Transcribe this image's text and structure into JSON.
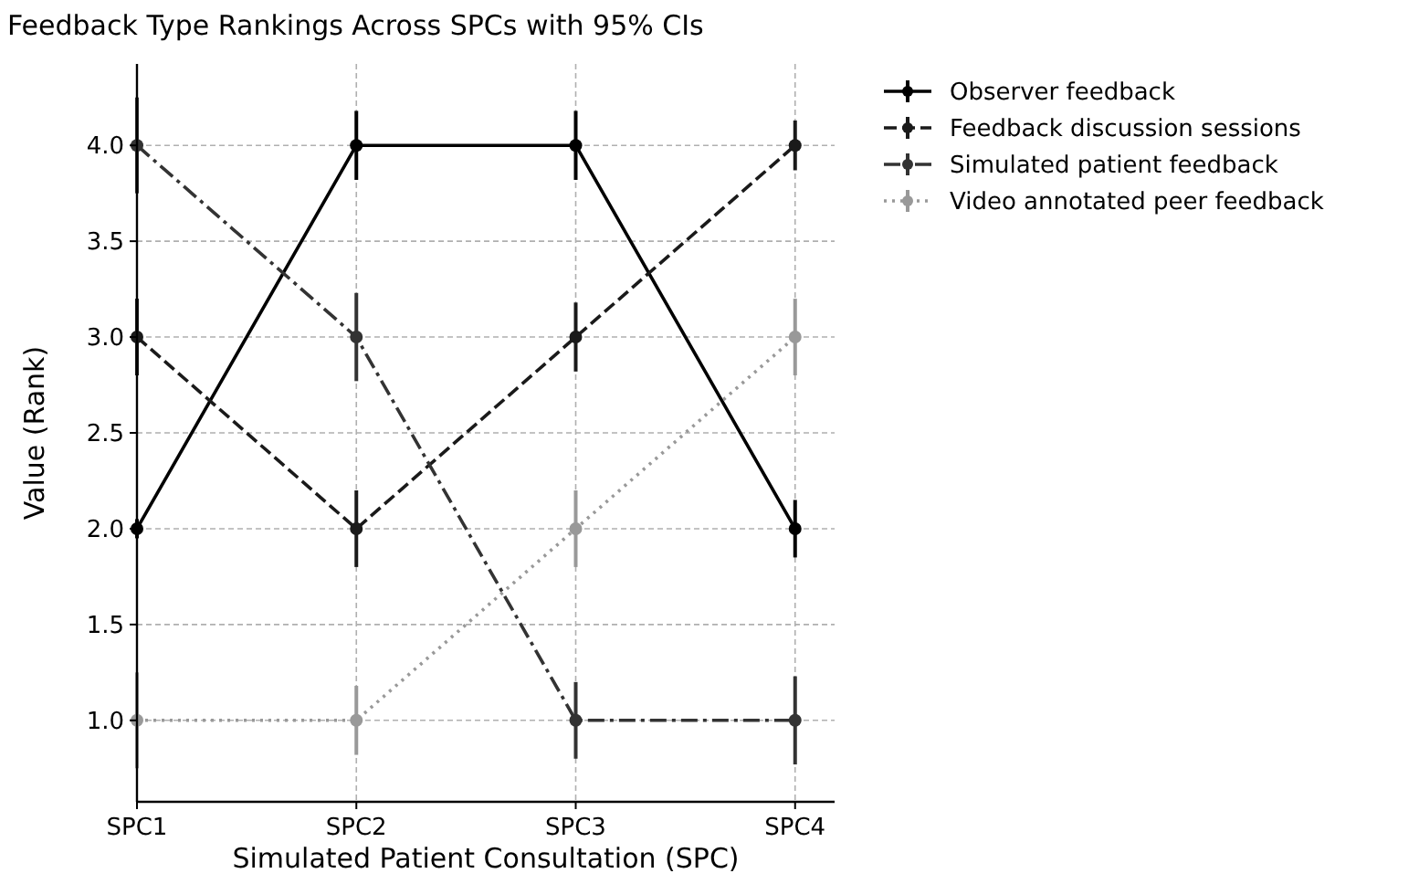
{
  "chart_data": {
    "type": "line",
    "title": "Feedback Type Rankings Across SPCs with 95% CIs",
    "xlabel": "Simulated Patient Consultation (SPC)",
    "ylabel": "Value (Rank)",
    "categories": [
      "SPC1",
      "SPC2",
      "SPC3",
      "SPC4"
    ],
    "series": [
      {
        "name": "Observer feedback",
        "color": "#000000",
        "line_style": "solid",
        "values": [
          2,
          4,
          4,
          2
        ],
        "errors": [
          0.05,
          0.18,
          0.18,
          0.15
        ]
      },
      {
        "name": "Feedback discussion sessions",
        "color": "#1a1a1a",
        "line_style": "dashed",
        "values": [
          3,
          2,
          3,
          4
        ],
        "errors": [
          0.2,
          0.2,
          0.18,
          0.13
        ]
      },
      {
        "name": "Simulated patient feedback",
        "color": "#333333",
        "line_style": "dashdot",
        "values": [
          4,
          3,
          1,
          1
        ],
        "errors": [
          0.25,
          0.23,
          0.2,
          0.23
        ]
      },
      {
        "name": "Video annotated peer feedback",
        "color": "#999999",
        "line_style": "dotted",
        "values": [
          1,
          1,
          2,
          3
        ],
        "errors": [
          0.25,
          0.18,
          0.2,
          0.2
        ]
      }
    ],
    "ylim": [
      0.575,
      4.425
    ],
    "yticks": [
      {
        "value": 1,
        "label": "1.0"
      },
      {
        "value": 1.5,
        "label": "1.5"
      },
      {
        "value": 2,
        "label": "2.0"
      },
      {
        "value": 2.5,
        "label": "2.5"
      },
      {
        "value": 3,
        "label": "3.0"
      },
      {
        "value": 3.5,
        "label": "3.5"
      },
      {
        "value": 4,
        "label": "4.0"
      }
    ],
    "grid": true,
    "legend": "right",
    "marker": "circle"
  }
}
